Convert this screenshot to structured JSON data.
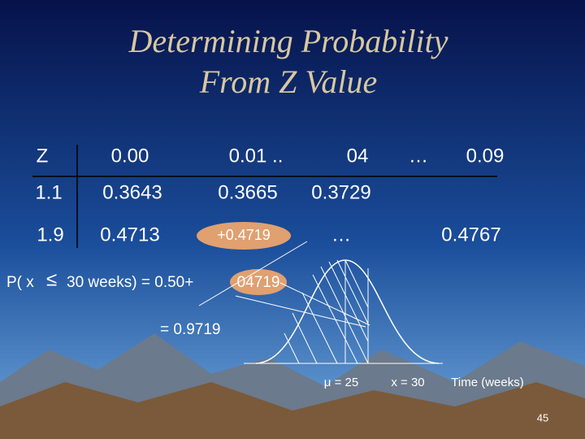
{
  "title": [
    "Determining Probability",
    "From Z Value"
  ],
  "table": {
    "header": [
      "Z",
      "0.00",
      "0.01 ..",
      "04",
      "…",
      "0.09"
    ],
    "rows": [
      [
        "1.1",
        "0.3643",
        "0.3665",
        "0.3729"
      ],
      [
        "1.9",
        "0.4713",
        "+0.4719",
        "…",
        "0.4767"
      ]
    ]
  },
  "formula": {
    "lhs": "P( x",
    "op": "≤",
    "rhs": "30 weeks) = 0.50+",
    "highlight": "04719",
    "result": "= 0.9719"
  },
  "curve_labels": [
    "μ = 25",
    "x = 30",
    "Time (weeks)"
  ],
  "page_number": "45"
}
